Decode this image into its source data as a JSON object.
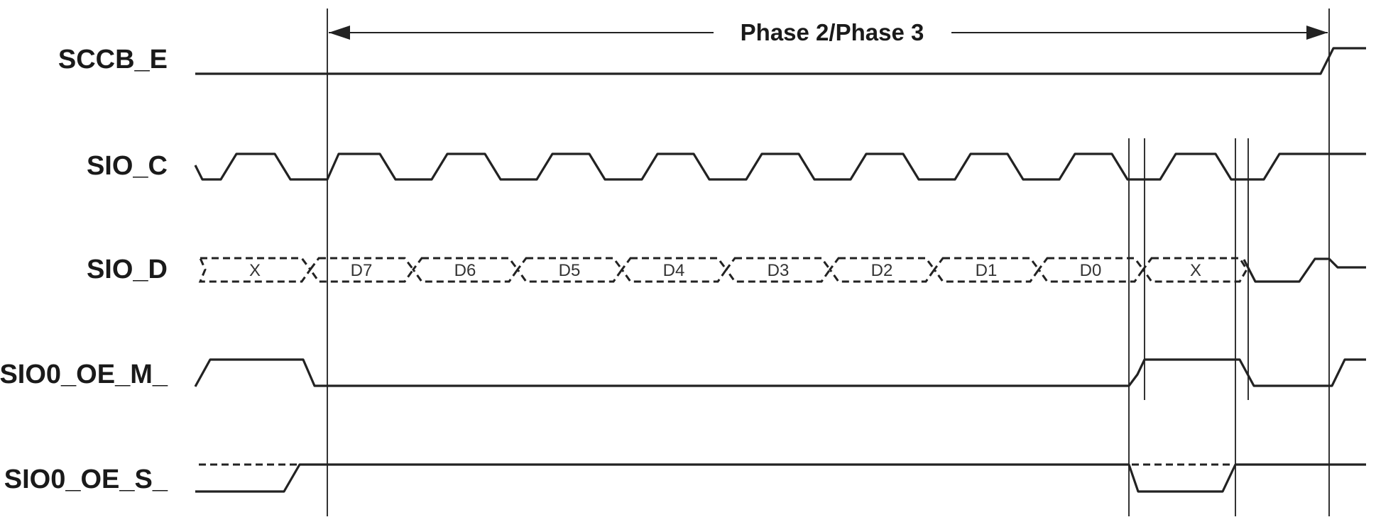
{
  "phase_label": "Phase 2/Phase 3",
  "signals": [
    {
      "id": "sccb-e",
      "label": "SCCB_E"
    },
    {
      "id": "sio-c",
      "label": "SIO_C"
    },
    {
      "id": "sio-d",
      "label": "SIO_D"
    },
    {
      "id": "sio0-oe-m",
      "label": "SIO0_OE_M_"
    },
    {
      "id": "sio0-oe-s",
      "label": "SIO0_OE_S_"
    }
  ],
  "data_segments": [
    "X",
    "D7",
    "D6",
    "D5",
    "D4",
    "D3",
    "D2",
    "D1",
    "D0",
    "X"
  ],
  "colors": {
    "line": "#222222",
    "text": "#1a1a1a",
    "background": "#ffffff"
  }
}
